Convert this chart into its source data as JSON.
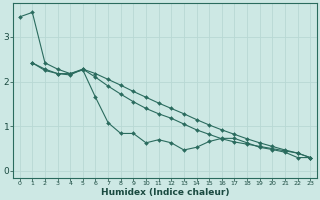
{
  "title": "",
  "xlabel": "Humidex (Indice chaleur)",
  "ylabel": "",
  "bg_color": "#cde8e4",
  "line_color": "#2a6b5e",
  "grid_color": "#b8d8d4",
  "xlim": [
    -0.5,
    23.5
  ],
  "ylim": [
    -0.15,
    3.75
  ],
  "xticks": [
    0,
    1,
    2,
    3,
    4,
    5,
    6,
    7,
    8,
    9,
    10,
    11,
    12,
    13,
    14,
    15,
    16,
    17,
    18,
    19,
    20,
    21,
    22,
    23
  ],
  "yticks": [
    0,
    1,
    2,
    3
  ],
  "line1_x": [
    0,
    1,
    2,
    3,
    4,
    5,
    6,
    7,
    8,
    9,
    10,
    11,
    12,
    13,
    14,
    15,
    16,
    17,
    18,
    19,
    20,
    21,
    22,
    23
  ],
  "line1_y": [
    3.45,
    3.55,
    2.42,
    2.28,
    2.18,
    2.26,
    1.65,
    1.08,
    0.84,
    0.84,
    0.63,
    0.7,
    0.63,
    0.47,
    0.53,
    0.66,
    0.73,
    0.73,
    0.63,
    0.53,
    0.48,
    0.42,
    0.3,
    0.3
  ],
  "line2_x": [
    1,
    2,
    3,
    4,
    5,
    6,
    7,
    8,
    9,
    10,
    11,
    12,
    13,
    14,
    15,
    16,
    17,
    18,
    19,
    20,
    21,
    22,
    23
  ],
  "line2_y": [
    2.42,
    2.25,
    2.18,
    2.15,
    2.28,
    2.1,
    1.9,
    1.72,
    1.55,
    1.4,
    1.28,
    1.18,
    1.05,
    0.92,
    0.82,
    0.72,
    0.65,
    0.6,
    0.55,
    0.5,
    0.45,
    0.4,
    0.3
  ],
  "line3_x": [
    1,
    2,
    3,
    4,
    5,
    6,
    7,
    8,
    9,
    10,
    11,
    12,
    13,
    14,
    15,
    16,
    17,
    18,
    19,
    20,
    21,
    22,
    23
  ],
  "line3_y": [
    2.42,
    2.28,
    2.18,
    2.18,
    2.28,
    2.18,
    2.05,
    1.92,
    1.78,
    1.65,
    1.52,
    1.4,
    1.28,
    1.15,
    1.03,
    0.92,
    0.82,
    0.72,
    0.63,
    0.55,
    0.47,
    0.4,
    0.3
  ]
}
